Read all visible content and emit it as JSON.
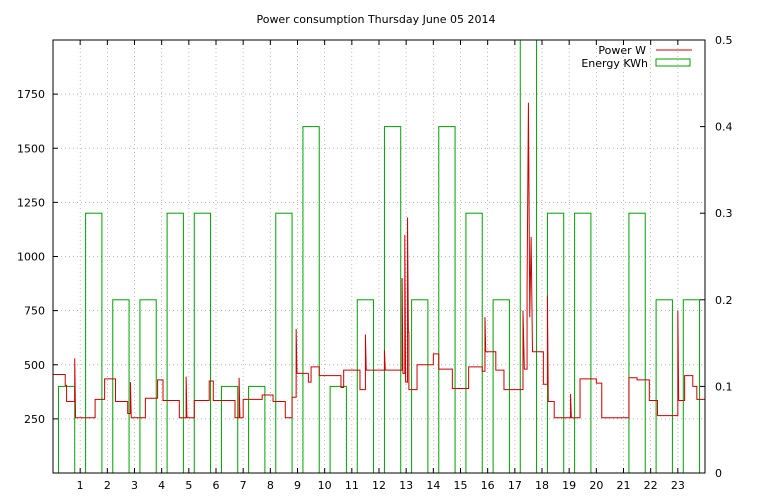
{
  "chart_data": {
    "type": "line",
    "title": "Power consumption Thursday June 05 2014",
    "xlabel": "",
    "ylabel": "",
    "x_unit": "hour",
    "xlim": [
      0,
      24
    ],
    "ylim": [
      0,
      2000
    ],
    "y2lim": [
      0,
      0.5
    ],
    "x_ticks": [
      "1",
      "2",
      "3",
      "4",
      "5",
      "6",
      "7",
      "8",
      "9",
      "10",
      "11",
      "12",
      "13",
      "14",
      "15",
      "16",
      "17",
      "18",
      "19",
      "20",
      "21",
      "22",
      "23"
    ],
    "y_ticks": [
      "250",
      "500",
      "750",
      "1000",
      "1250",
      "1500",
      "1750"
    ],
    "y2_ticks": [
      "0",
      "0.1",
      "0.2",
      "0.3",
      "0.4",
      "0.5"
    ],
    "grid": true,
    "legend_position": "top-right",
    "series": [
      {
        "name": "Power W",
        "color": "#cc0000",
        "axis": "y",
        "points": [
          [
            0.0,
            455
          ],
          [
            0.45,
            455
          ],
          [
            0.45,
            405
          ],
          [
            0.5,
            405
          ],
          [
            0.5,
            330
          ],
          [
            0.8,
            330
          ],
          [
            0.8,
            530
          ],
          [
            0.83,
            255
          ],
          [
            1.55,
            255
          ],
          [
            1.55,
            340
          ],
          [
            1.9,
            340
          ],
          [
            1.9,
            435
          ],
          [
            2.3,
            435
          ],
          [
            2.3,
            330
          ],
          [
            2.75,
            330
          ],
          [
            2.75,
            275
          ],
          [
            2.85,
            275
          ],
          [
            2.85,
            420
          ],
          [
            2.88,
            255
          ],
          [
            3.4,
            255
          ],
          [
            3.4,
            345
          ],
          [
            3.85,
            345
          ],
          [
            3.85,
            430
          ],
          [
            4.05,
            430
          ],
          [
            4.05,
            335
          ],
          [
            4.65,
            335
          ],
          [
            4.65,
            255
          ],
          [
            4.9,
            255
          ],
          [
            4.9,
            445
          ],
          [
            4.93,
            255
          ],
          [
            5.2,
            255
          ],
          [
            5.2,
            335
          ],
          [
            5.75,
            335
          ],
          [
            5.75,
            425
          ],
          [
            5.9,
            425
          ],
          [
            5.9,
            335
          ],
          [
            6.7,
            335
          ],
          [
            6.7,
            255
          ],
          [
            6.85,
            255
          ],
          [
            6.85,
            440
          ],
          [
            6.88,
            255
          ],
          [
            7.0,
            255
          ],
          [
            7.0,
            340
          ],
          [
            7.7,
            340
          ],
          [
            7.7,
            360
          ],
          [
            8.1,
            360
          ],
          [
            8.1,
            330
          ],
          [
            8.55,
            330
          ],
          [
            8.55,
            255
          ],
          [
            8.8,
            255
          ],
          [
            8.8,
            350
          ],
          [
            8.95,
            350
          ],
          [
            8.95,
            665
          ],
          [
            8.98,
            460
          ],
          [
            9.4,
            460
          ],
          [
            9.4,
            420
          ],
          [
            9.5,
            420
          ],
          [
            9.5,
            490
          ],
          [
            9.8,
            490
          ],
          [
            9.8,
            450
          ],
          [
            10.6,
            450
          ],
          [
            10.6,
            395
          ],
          [
            10.7,
            395
          ],
          [
            10.7,
            475
          ],
          [
            11.3,
            475
          ],
          [
            11.3,
            385
          ],
          [
            11.5,
            385
          ],
          [
            11.5,
            640
          ],
          [
            11.53,
            475
          ],
          [
            12.2,
            475
          ],
          [
            12.2,
            570
          ],
          [
            12.23,
            475
          ],
          [
            12.85,
            475
          ],
          [
            12.85,
            900
          ],
          [
            12.88,
            460
          ],
          [
            12.95,
            460
          ],
          [
            12.95,
            1100
          ],
          [
            12.98,
            420
          ],
          [
            13.05,
            420
          ],
          [
            13.05,
            1180
          ],
          [
            13.08,
            650
          ],
          [
            13.1,
            650
          ],
          [
            13.1,
            385
          ],
          [
            13.4,
            385
          ],
          [
            13.4,
            500
          ],
          [
            14.0,
            500
          ],
          [
            14.0,
            550
          ],
          [
            14.2,
            550
          ],
          [
            14.2,
            480
          ],
          [
            14.7,
            480
          ],
          [
            14.7,
            390
          ],
          [
            15.3,
            390
          ],
          [
            15.3,
            490
          ],
          [
            15.8,
            490
          ],
          [
            15.8,
            470
          ],
          [
            15.9,
            470
          ],
          [
            15.9,
            720
          ],
          [
            15.93,
            560
          ],
          [
            16.3,
            560
          ],
          [
            16.3,
            475
          ],
          [
            16.6,
            475
          ],
          [
            16.6,
            385
          ],
          [
            17.3,
            385
          ],
          [
            17.3,
            750
          ],
          [
            17.35,
            480
          ],
          [
            17.45,
            480
          ],
          [
            17.45,
            850
          ],
          [
            17.5,
            1710
          ],
          [
            17.55,
            720
          ],
          [
            17.6,
            1090
          ],
          [
            17.65,
            560
          ],
          [
            18.05,
            560
          ],
          [
            18.05,
            410
          ],
          [
            18.2,
            410
          ],
          [
            18.2,
            820
          ],
          [
            18.23,
            330
          ],
          [
            18.45,
            330
          ],
          [
            18.45,
            255
          ],
          [
            19.05,
            255
          ],
          [
            19.05,
            365
          ],
          [
            19.08,
            255
          ],
          [
            19.4,
            255
          ],
          [
            19.4,
            435
          ],
          [
            20.0,
            435
          ],
          [
            20.0,
            415
          ],
          [
            20.2,
            415
          ],
          [
            20.2,
            255
          ],
          [
            21.2,
            255
          ],
          [
            21.2,
            440
          ],
          [
            21.5,
            440
          ],
          [
            21.5,
            430
          ],
          [
            21.95,
            430
          ],
          [
            21.95,
            335
          ],
          [
            22.25,
            335
          ],
          [
            22.25,
            265
          ],
          [
            23.0,
            265
          ],
          [
            23.0,
            750
          ],
          [
            23.03,
            335
          ],
          [
            23.25,
            335
          ],
          [
            23.25,
            450
          ],
          [
            23.55,
            450
          ],
          [
            23.55,
            400
          ],
          [
            23.7,
            400
          ],
          [
            23.7,
            340
          ],
          [
            24.0,
            340
          ]
        ]
      },
      {
        "name": "Energy KWh",
        "color": "#00a000",
        "axis": "y2",
        "values": [
          0.1,
          0.3,
          0.2,
          0.2,
          0.3,
          0.3,
          0.1,
          0.1,
          0.3,
          0.4,
          0.1,
          0.2,
          0.4,
          0.2,
          0.4,
          0.3,
          0.2,
          0.5,
          0.3,
          0.3,
          0,
          0.3,
          0.2,
          0.2
        ]
      }
    ]
  }
}
